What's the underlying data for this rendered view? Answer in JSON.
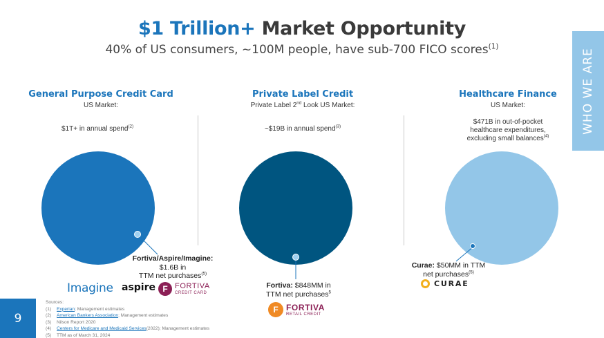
{
  "header": {
    "title_accent": "$1 Trillion+",
    "title_rest": " Market Opportunity",
    "subtitle": "40% of US consumers, ~100M people, have sub-700 FICO scores",
    "subtitle_note": "(1)"
  },
  "side_tab": {
    "label": "WHO WE ARE"
  },
  "columns": [
    {
      "heading": "General Purpose Credit Card",
      "market_label": "US Market:",
      "market_size": "$1T+ in annual spend",
      "market_note": "(2)",
      "circle_color": "#1b75bb",
      "callout_bold": "Fortiva/Aspire/Imagine:",
      "callout_line2": "$1.6B in",
      "callout_line3": "TTM net purchases",
      "callout_note": "(5)",
      "logos": [
        "Imagine",
        "aspire",
        "FORTIVA",
        "CREDIT CARD"
      ]
    },
    {
      "heading": "Private Label Credit",
      "market_label_pre": "Private Label 2",
      "market_label_sup": "nd",
      "market_label_post": " Look US Market:",
      "market_size": "~$19B in annual spend",
      "market_note": "(3)",
      "circle_color": "#005580",
      "callout_bold": "Fortiva:",
      "callout_line1_rest": " $848MM in",
      "callout_line2": "TTM net purchases",
      "callout_note": "5",
      "logos": [
        "FORTIVA",
        "RETAIL CREDIT"
      ]
    },
    {
      "heading": "Healthcare Finance",
      "market_label": "US Market:",
      "market_size_line1": "$471B in out-of-pocket",
      "market_size_line2": "healthcare expenditures,",
      "market_size_line3": "excluding small balances",
      "market_note": "(4)",
      "circle_color": "#93c6e8",
      "callout_bold": "Curae:",
      "callout_line1_rest": " $50MM in TTM",
      "callout_line2": "net purchases",
      "callout_note": "(5)",
      "logos": [
        "CURAE"
      ]
    }
  ],
  "footer": {
    "page_number": "9",
    "sources_title": "Sources:",
    "sources": [
      {
        "num": "(1)",
        "link": "Experian",
        "text": "; Management estimates"
      },
      {
        "num": "(2)",
        "link": "American Bankers Association",
        "text": "; Management estimates"
      },
      {
        "num": "(3)",
        "link": "",
        "text": "Nilson Report 2020"
      },
      {
        "num": "(4)",
        "link": "Centers for Medicare and Medicaid Services",
        "text": " (2022); Management estimates"
      },
      {
        "num": "(5)",
        "link": "",
        "text": "TTM as of March 31, 2024"
      }
    ]
  },
  "colors": {
    "accent": "#1b75bb",
    "dark_blue": "#005580",
    "light_blue": "#93c6e8",
    "fortiva_purple": "#8b1f55",
    "fortiva_orange": "#f08a24",
    "curae_gold": "#f2b01e"
  }
}
